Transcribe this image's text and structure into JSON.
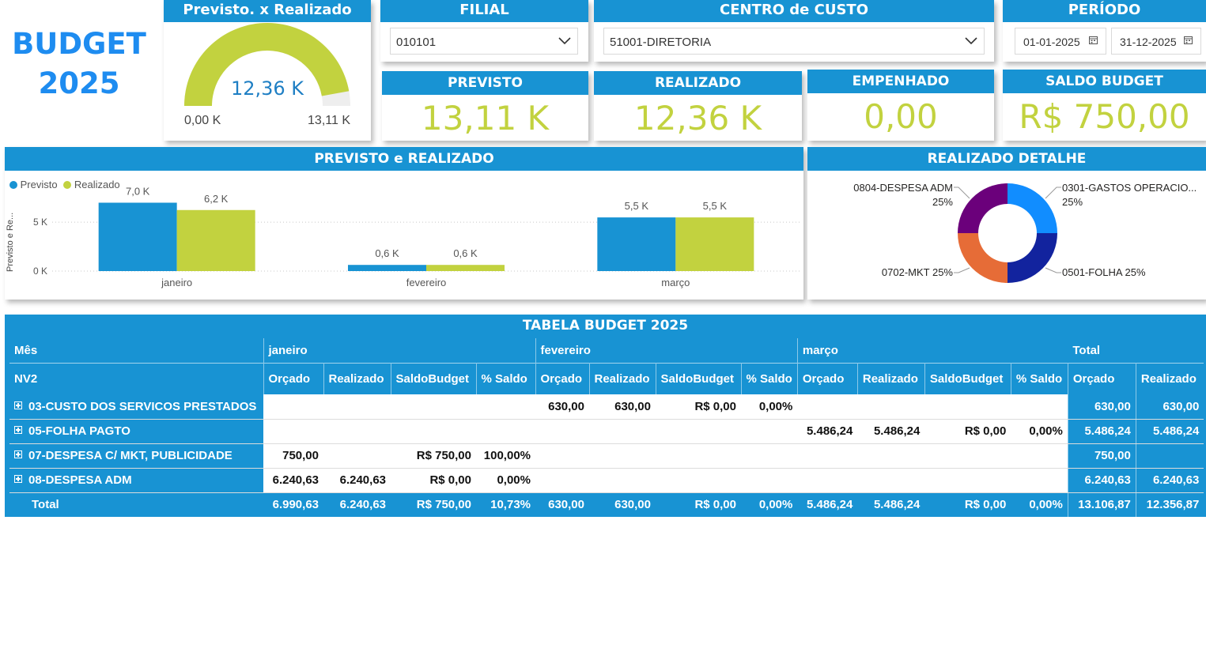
{
  "header": {
    "budget_word": "BUDGET",
    "budget_year": "2025"
  },
  "gauge": {
    "title": "Previsto. x Realizado",
    "value_label": "12,36 K",
    "min_label": "0,00 K",
    "max_label": "13,11 K",
    "value": 12356.87,
    "max": 13106.87,
    "fill_color": "#c2d23f",
    "track_color": "#eeeeee"
  },
  "filters": {
    "filial": {
      "label": "FILIAL",
      "value": "010101"
    },
    "centro": {
      "label": "CENTRO de CUSTO",
      "value": "51001-DIRETORIA"
    },
    "periodo": {
      "label": "PERÍODO",
      "start": "01-01-2025",
      "end": "31-12-2025"
    }
  },
  "kpis": {
    "previsto": {
      "label": "PREVISTO",
      "value": "13,11 K"
    },
    "realizado": {
      "label": "REALIZADO",
      "value": "12,36 K"
    },
    "empenhado": {
      "label": "EMPENHADO",
      "value": "0,00"
    },
    "saldo": {
      "label": "SALDO BUDGET",
      "value": "R$ 750,00"
    }
  },
  "bar_panel": {
    "title": "PREVISTO e REALIZADO",
    "legend": [
      "Previsto",
      "Realizado"
    ],
    "y_axis_label": "Previsto e Re...",
    "y_ticks": [
      "0 K",
      "5 K"
    ]
  },
  "pie_panel": {
    "title": "REALIZADO DETALHE",
    "labels": [
      {
        "name": "0301-GASTOS OPERACIO...",
        "pct": "25%"
      },
      {
        "name": "0501-FOLHA 25%",
        "pct": ""
      },
      {
        "name": "0702-MKT 25%",
        "pct": ""
      },
      {
        "name": "0804-DESPESA ADM",
        "pct": "25%"
      }
    ]
  },
  "chart_data": [
    {
      "type": "bar",
      "title": "PREVISTO e REALIZADO",
      "categories": [
        "janeiro",
        "fevereiro",
        "março"
      ],
      "series": [
        {
          "name": "Previsto",
          "values": [
            6990.63,
            630.0,
            5486.24
          ],
          "labels": [
            "7,0 K",
            "0,6 K",
            "5,5 K"
          ],
          "color": "#1893d3"
        },
        {
          "name": "Realizado",
          "values": [
            6240.63,
            630.0,
            5486.24
          ],
          "labels": [
            "6,2 K",
            "0,6 K",
            "5,5 K"
          ],
          "color": "#c2d23f"
        }
      ],
      "ylabel": "Previsto e Re...",
      "ylim": [
        0,
        8000
      ],
      "y_ticks": [
        0,
        5000
      ],
      "grid": true,
      "legend": "top-left"
    },
    {
      "type": "pie",
      "title": "REALIZADO DETALHE",
      "donut": true,
      "slices": [
        {
          "name": "0301-GASTOS OPERACIO...",
          "value": 25,
          "color": "#118dff"
        },
        {
          "name": "0501-FOLHA",
          "value": 25,
          "color": "#12239e"
        },
        {
          "name": "0702-MKT",
          "value": 25,
          "color": "#e66c37"
        },
        {
          "name": "0804-DESPESA ADM",
          "value": 25,
          "color": "#6b007b"
        }
      ]
    }
  ],
  "table": {
    "title": "TABELA BUDGET 2025",
    "row1": [
      "Mês",
      "janeiro",
      "fevereiro",
      "março",
      "Total"
    ],
    "row2": [
      "NV2",
      "Orçado",
      "Realizado",
      "SaldoBudget",
      "% Saldo",
      "Orçado",
      "Realizado",
      "SaldoBudget",
      "% Saldo",
      "Orçado",
      "Realizado",
      "SaldoBudget",
      "% Saldo",
      "Orçado",
      "Realizado"
    ],
    "rows": [
      {
        "label": "03-CUSTO DOS SERVICOS PRESTADOS",
        "cells": [
          "",
          "",
          "",
          "",
          "630,00",
          "630,00",
          "R$ 0,00",
          "0,00%",
          "",
          "",
          "",
          "",
          "630,00",
          "630,00"
        ]
      },
      {
        "label": "05-FOLHA PAGTO",
        "cells": [
          "",
          "",
          "",
          "",
          "",
          "",
          "",
          "",
          "5.486,24",
          "5.486,24",
          "R$ 0,00",
          "0,00%",
          "5.486,24",
          "5.486,24"
        ]
      },
      {
        "label": "07-DESPESA C/ MKT, PUBLICIDADE",
        "cells": [
          "750,00",
          "",
          "R$ 750,00",
          "100,00%",
          "",
          "",
          "",
          "",
          "",
          "",
          "",
          "",
          "750,00",
          ""
        ]
      },
      {
        "label": "08-DESPESA ADM",
        "cells": [
          "6.240,63",
          "6.240,63",
          "R$ 0,00",
          "0,00%",
          "",
          "",
          "",
          "",
          "",
          "",
          "",
          "",
          "6.240,63",
          "6.240,63"
        ]
      }
    ],
    "total": {
      "label": "Total",
      "cells": [
        "6.990,63",
        "6.240,63",
        "R$ 750,00",
        "10,73%",
        "630,00",
        "630,00",
        "R$ 0,00",
        "0,00%",
        "5.486,24",
        "5.486,24",
        "R$ 0,00",
        "0,00%",
        "13.106,87",
        "12.356,87"
      ]
    }
  }
}
